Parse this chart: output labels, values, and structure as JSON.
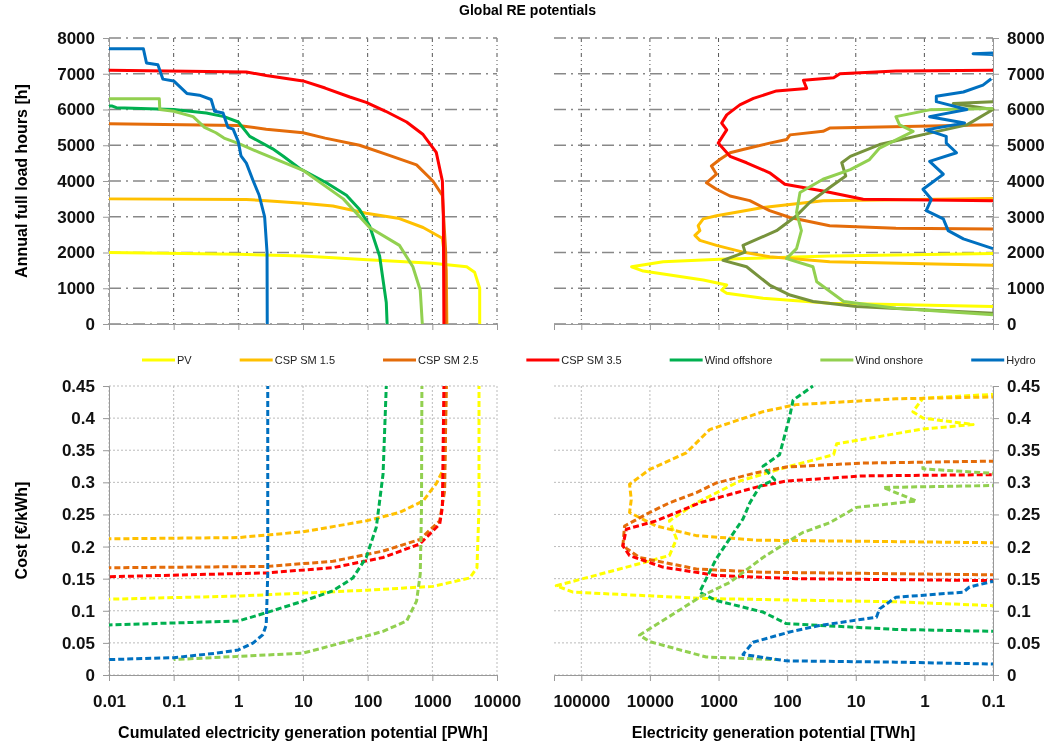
{
  "chart_data": [
    {
      "type": "line",
      "title": "Global RE potentials",
      "ylabel": "Annual full load hours [h]",
      "log": "x",
      "xlim": [
        0.01,
        10000
      ],
      "xticks": [
        0.01,
        0.1,
        1,
        10,
        100,
        1000,
        10000
      ],
      "ylim": [
        0,
        8000
      ],
      "yticks": [
        0,
        1000,
        2000,
        3000,
        4000,
        5000,
        6000,
        7000,
        8000
      ],
      "tick_labels": "y",
      "grid": true,
      "legend": "bottom",
      "line_style": "solid",
      "series": [
        {
          "name": "PV",
          "color": "#ffff00",
          "x": [
            0.01,
            1,
            10,
            100,
            1000,
            3400,
            4500,
            5400,
            5400
          ],
          "values": [
            2000,
            1950,
            1900,
            1800,
            1700,
            1600,
            1450,
            1000,
            0
          ]
        },
        {
          "name": "CSP SM 1.5",
          "color": "#ffc000",
          "x": [
            0.01,
            1.33,
            2.7,
            10,
            29,
            95,
            310,
            720,
            1430,
            1640,
            1680
          ],
          "values": [
            3500,
            3480,
            3450,
            3380,
            3300,
            3100,
            2950,
            2700,
            2400,
            1500,
            0
          ]
        },
        {
          "name": "CSP SM 2.5",
          "color": "#e46c0a",
          "x": [
            0.01,
            1,
            2.7,
            10,
            22,
            75,
            190,
            570,
            1020,
            1430,
            1610,
            1640
          ],
          "values": [
            5600,
            5550,
            5450,
            5350,
            5200,
            5000,
            4750,
            4450,
            4000,
            3600,
            2000,
            0
          ]
        },
        {
          "name": "CSP SM 3.5",
          "color": "#ff0000",
          "x": [
            0.01,
            1.33,
            2.7,
            10,
            22,
            53,
            95,
            190,
            400,
            720,
            1150,
            1430,
            1480,
            1510
          ],
          "values": [
            7100,
            7050,
            6950,
            6800,
            6600,
            6350,
            6200,
            5950,
            5650,
            5300,
            4800,
            4000,
            3000,
            0
          ]
        },
        {
          "name": "Wind offshore",
          "color": "#00b050",
          "x": [
            0.01,
            0.011,
            0.013,
            0.1,
            0.32,
            0.6,
            1,
            1.5,
            3.4,
            4.9,
            8.9,
            23,
            47,
            75,
            107,
            153,
            194,
            200
          ],
          "values": [
            6100,
            6100,
            6050,
            6000,
            5900,
            5800,
            5650,
            5250,
            4900,
            4700,
            4350,
            3950,
            3600,
            3200,
            2750,
            1900,
            600,
            0
          ]
        },
        {
          "name": "Wind onshore",
          "color": "#92d050",
          "x": [
            0.01,
            0.06,
            0.061,
            0.1,
            0.2,
            0.3,
            0.45,
            0.6,
            1,
            2.1,
            10,
            42,
            107,
            310,
            500,
            650,
            700
          ],
          "values": [
            6300,
            6300,
            6000,
            5950,
            5800,
            5500,
            5350,
            5200,
            5050,
            4800,
            4300,
            3500,
            2700,
            2200,
            1600,
            950,
            0
          ]
        },
        {
          "name": "Hydro",
          "color": "#0070c0",
          "x": [
            0.01,
            0.034,
            0.038,
            0.057,
            0.068,
            0.1,
            0.16,
            0.25,
            0.38,
            0.43,
            0.58,
            0.69,
            0.83,
            1,
            1.1,
            1.33,
            1.7,
            2.1,
            2.55,
            2.78,
            2.8
          ],
          "values": [
            7700,
            7700,
            7300,
            7250,
            6850,
            6800,
            6450,
            6400,
            6280,
            5950,
            5900,
            5500,
            5450,
            5100,
            4700,
            4500,
            4000,
            3600,
            3000,
            2000,
            0
          ]
        }
      ]
    },
    {
      "type": "line",
      "log": "x",
      "xlim": [
        250000,
        0.1
      ],
      "xticks": [
        100000,
        10000,
        1000,
        100,
        10,
        1,
        0.1
      ],
      "ylim": [
        0,
        8000
      ],
      "yticks": [
        0,
        1000,
        2000,
        3000,
        4000,
        5000,
        6000,
        7000,
        8000
      ],
      "tick_labels": "y",
      "grid": true,
      "line_style": "solid",
      "series": [
        {
          "color": "#ffff00",
          "x": [
            0.1,
            24,
            960,
            6400,
            18500,
            12500,
            5100,
            1670,
            760,
            900,
            760,
            224,
            24,
            0.1
          ],
          "values": [
            1970,
            1900,
            1810,
            1740,
            1600,
            1480,
            1370,
            1230,
            1090,
            950,
            860,
            720,
            580,
            490
          ]
        },
        {
          "color": "#ffc000",
          "x": [
            0.1,
            30,
            224,
            1070,
            1670,
            1980,
            1870,
            2210,
            1870,
            1070,
            440,
            180,
            24,
            0.1
          ],
          "values": [
            3510,
            3450,
            3260,
            3030,
            2940,
            2750,
            2610,
            2480,
            2340,
            2200,
            2010,
            1880,
            1740,
            1640
          ]
        },
        {
          "color": "#e46c0a",
          "x": [
            0.1,
            24,
            30,
            91,
            102,
            180,
            440,
            680,
            960,
            1270,
            1070,
            1500,
            1070,
            680,
            350,
            180,
            91,
            24,
            2.6,
            0.1
          ],
          "values": [
            5570,
            5480,
            5390,
            5290,
            5160,
            5060,
            4880,
            4790,
            4600,
            4420,
            4190,
            3950,
            3770,
            3580,
            3450,
            3170,
            2980,
            2750,
            2680,
            2660
          ]
        },
        {
          "color": "#ff0000",
          "x": [
            0.1,
            2.6,
            17,
            21,
            58,
            52,
            143,
            310,
            490,
            760,
            900,
            760,
            1010,
            680,
            390,
            180,
            108,
            30,
            7.8,
            0.1
          ],
          "values": [
            7100,
            7080,
            7000,
            6890,
            6820,
            6590,
            6520,
            6310,
            6130,
            5850,
            5620,
            5430,
            5060,
            4690,
            4510,
            4230,
            3910,
            3720,
            3490,
            3450
          ]
        },
        {
          "color": "#77933c",
          "x": [
            0.1,
            0.38,
            0.1,
            0.24,
            0.84,
            4.5,
            12,
            16,
            14,
            24,
            47,
            73,
            143,
            440,
            410,
            860,
            390,
            180,
            91,
            42,
            9.8,
            0.1
          ],
          "values": [
            6220,
            6170,
            6000,
            5570,
            5340,
            5020,
            4690,
            4510,
            4140,
            3820,
            3400,
            3030,
            2610,
            2200,
            2010,
            1780,
            1600,
            1090,
            810,
            630,
            490,
            300
          ]
        },
        {
          "color": "#92d050",
          "x": [
            0.1,
            0.84,
            2.6,
            2.3,
            1.46,
            4.5,
            6.3,
            12,
            30,
            65,
            73,
            62,
            73,
            102,
            42,
            37,
            15,
            2.6,
            0.1
          ],
          "values": [
            6030,
            5990,
            5800,
            5570,
            5390,
            4920,
            4600,
            4320,
            4050,
            3680,
            3120,
            2610,
            2110,
            1830,
            1600,
            1180,
            630,
            440,
            260
          ]
        },
        {
          "color": "#0070c0",
          "x": [
            0.1,
            0.195,
            0.1,
            null,
            0.106,
            0.14,
            0.27,
            0.67,
            0.67,
            0.24,
            0.84,
            0.26,
            0.94,
            0.48,
            0.48,
            0.34,
            0.84,
            0.53,
            1.05,
            0.79,
            0.94,
            0.53,
            0.45,
            0.27,
            0.1
          ],
          "values": [
            7580,
            7560,
            7540,
            null,
            6860,
            6680,
            6490,
            6370,
            6220,
            6000,
            5800,
            5620,
            5430,
            5250,
            5060,
            4790,
            4550,
            4190,
            3770,
            3490,
            3170,
            2940,
            2610,
            2380,
            2110
          ]
        }
      ]
    },
    {
      "type": "line",
      "xlabel": "Cumulated electricity generation potential [PWh]",
      "ylabel": "Cost [€/kWh]",
      "log": "x",
      "xlim": [
        0.01,
        10000
      ],
      "xticks": [
        0.01,
        0.1,
        1,
        10,
        100,
        1000,
        10000
      ],
      "ylim": [
        0,
        0.45
      ],
      "yticks": [
        0,
        0.05,
        0.1,
        0.15,
        0.2,
        0.25,
        0.3,
        0.35,
        0.4,
        0.45
      ],
      "grid": true,
      "line_style": "dashed",
      "series": [
        {
          "color": "#ffff00",
          "x": [
            0.01,
            1,
            95,
            1020,
            3780,
            4900,
            5270,
            5270
          ],
          "values": [
            0.118,
            0.123,
            0.132,
            0.138,
            0.151,
            0.167,
            0.261,
            0.45
          ]
        },
        {
          "color": "#ffc000",
          "x": [
            0.01,
            1,
            10,
            95,
            310,
            720,
            1150,
            1550,
            1640
          ],
          "values": [
            0.212,
            0.214,
            0.223,
            0.24,
            0.253,
            0.271,
            0.298,
            0.324,
            0.45
          ]
        },
        {
          "color": "#e46c0a",
          "x": [
            0.01,
            2.7,
            29,
            173,
            640,
            1300,
            1550,
            1640
          ],
          "values": [
            0.167,
            0.169,
            0.177,
            0.193,
            0.211,
            0.24,
            0.287,
            0.45
          ]
        },
        {
          "color": "#ff0000",
          "x": [
            0.01,
            2.7,
            29,
            173,
            640,
            1300,
            1430,
            1510
          ],
          "values": [
            0.153,
            0.159,
            0.167,
            0.183,
            0.204,
            0.235,
            0.261,
            0.45
          ]
        },
        {
          "color": "#00b050",
          "x": [
            0.01,
            1,
            2.7,
            10,
            29,
            59,
            95,
            136,
            173,
            194
          ],
          "values": [
            0.078,
            0.084,
            0.097,
            0.115,
            0.131,
            0.151,
            0.183,
            0.23,
            0.313,
            0.45
          ]
        },
        {
          "color": "#92d050",
          "x": [
            0.1,
            1,
            10,
            47,
            173,
            400,
            570,
            650,
            680,
            690
          ],
          "values": [
            0.024,
            0.029,
            0.034,
            0.052,
            0.068,
            0.084,
            0.115,
            0.157,
            0.261,
            0.45
          ]
        },
        {
          "color": "#0070c0",
          "x": [
            0.01,
            0.1,
            0.46,
            1,
            1.7,
            2.4,
            2.7,
            2.85,
            2.85
          ],
          "values": [
            0.024,
            0.027,
            0.034,
            0.039,
            0.05,
            0.063,
            0.078,
            0.157,
            0.45
          ]
        }
      ]
    },
    {
      "type": "line",
      "xlabel": "Electricity generation potential [TWh]",
      "log": "x",
      "xlim": [
        250000,
        0.1
      ],
      "xticks": [
        100000,
        10000,
        1000,
        100,
        10,
        1,
        0.1
      ],
      "ylim": [
        0,
        0.45
      ],
      "yticks": [
        0,
        0.05,
        0.1,
        0.15,
        0.2,
        0.25,
        0.3,
        0.35,
        0.4,
        0.45
      ],
      "grid": true,
      "line_style": "dashed",
      "series": [
        {
          "color": "#ffff00",
          "x": [
            0.1,
            1.05,
            1.47,
            1.05,
            0.195,
            1.05,
            19,
            21,
            92,
            490,
            2100,
            5200,
            4100,
            5200,
            27700,
            232000,
            132000,
            1510,
            2.6,
            0.1
          ],
          "values": [
            0.437,
            0.431,
            0.41,
            0.4,
            0.39,
            0.383,
            0.36,
            0.343,
            0.325,
            0.302,
            0.268,
            0.24,
            0.212,
            0.186,
            0.165,
            0.139,
            0.129,
            0.119,
            0.114,
            0.108
          ]
        },
        {
          "color": "#ffc000",
          "x": [
            0.1,
            2.6,
            74,
            225,
            1350,
            2950,
            10100,
            19800,
            18700,
            19800,
            8100,
            2100,
            280,
            0.1
          ],
          "values": [
            0.433,
            0.43,
            0.421,
            0.41,
            0.382,
            0.346,
            0.32,
            0.297,
            0.273,
            0.253,
            0.232,
            0.217,
            0.21,
            0.206
          ]
        },
        {
          "color": "#e46c0a",
          "x": [
            0.1,
            7.9,
            103,
            280,
            1080,
            2100,
            5200,
            10100,
            23400,
            24800,
            14200,
            2100,
            225,
            0.1
          ],
          "values": [
            0.333,
            0.33,
            0.324,
            0.315,
            0.299,
            0.284,
            0.268,
            0.253,
            0.232,
            0.201,
            0.183,
            0.165,
            0.16,
            0.156
          ]
        },
        {
          "color": "#ff0000",
          "x": [
            0.1,
            7.9,
            103,
            250,
            690,
            1890,
            4100,
            8100,
            22100,
            24800,
            19800,
            6500,
            1080,
            74,
            0.1
          ],
          "values": [
            0.312,
            0.31,
            0.302,
            0.294,
            0.281,
            0.268,
            0.253,
            0.24,
            0.227,
            0.201,
            0.186,
            0.168,
            0.155,
            0.15,
            0.147
          ]
        },
        {
          "color": "#00b050",
          "x": [
            0.1,
            2.6,
            103,
            225,
            1080,
            1890,
            1510,
            1080,
            690,
            440,
            350,
            250,
            152,
            225,
            129,
            92,
            82,
            42
          ],
          "values": [
            0.068,
            0.071,
            0.08,
            0.098,
            0.116,
            0.129,
            0.15,
            0.181,
            0.212,
            0.243,
            0.268,
            0.294,
            0.304,
            0.325,
            0.343,
            0.402,
            0.428,
            0.45
          ]
        },
        {
          "color": "#92d050",
          "x": [
            0.1,
            1.05,
            1.05,
            null,
            0.1,
            4,
            1.3,
            9.8,
            24,
            59,
            103,
            225,
            690,
            1690,
            14200,
            10100,
            1510,
            150
          ],
          "values": [
            0.314,
            0.321,
            0.327,
            null,
            0.295,
            0.292,
            0.271,
            0.261,
            0.237,
            0.222,
            0.206,
            0.183,
            0.144,
            0.124,
            0.062,
            0.052,
            0.028,
            0.024
          ]
        },
        {
          "color": "#0070c0",
          "x": [
            0.1,
            2.6,
            103,
            440,
            315,
            92,
            34,
            5,
            4.5,
            2.6,
            0.27,
            0.22,
            0.1
          ],
          "values": [
            0.017,
            0.02,
            0.022,
            0.032,
            0.051,
            0.067,
            0.077,
            0.09,
            0.103,
            0.121,
            0.129,
            0.137,
            0.146
          ]
        }
      ]
    }
  ]
}
